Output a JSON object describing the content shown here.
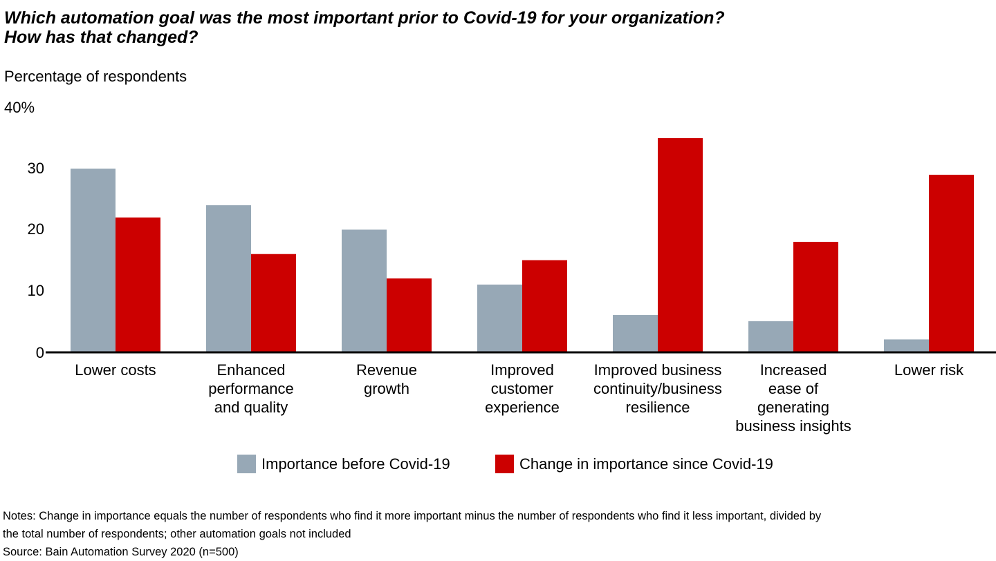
{
  "chart_data": {
    "type": "bar",
    "title": "Which automation goal was the most important prior to Covid-19 for your organization? How has that changed?",
    "title_lines": [
      "Which automation goal was the most important prior to Covid-19 for your organization?",
      "How has that changed?"
    ],
    "ylabel": "Percentage of respondents",
    "xlabel": "",
    "ylim": [
      0,
      40
    ],
    "yticks": [
      "0",
      "10",
      "20",
      "30",
      "40%"
    ],
    "grid": false,
    "legend_position": "bottom",
    "categories": [
      "Lower costs",
      "Enhanced performance and quality",
      "Revenue growth",
      "Improved customer experience",
      "Improved business continuity/business resilience",
      "Increased ease of generating business insights",
      "Lower risk"
    ],
    "category_lines": [
      [
        "Lower costs"
      ],
      [
        "Enhanced",
        "performance",
        "and quality"
      ],
      [
        "Revenue",
        "growth"
      ],
      [
        "Improved",
        "customer",
        "experience"
      ],
      [
        "Improved business",
        "continuity/business",
        "resilience"
      ],
      [
        "Increased",
        "ease of",
        "generating",
        "business insights"
      ],
      [
        "Lower risk"
      ]
    ],
    "series": [
      {
        "name": "Importance before Covid-19",
        "color": "#97A8B6",
        "values": [
          30,
          24,
          20,
          11,
          6,
          5,
          2
        ]
      },
      {
        "name": "Change in importance since Covid-19",
        "color": "#CC0000",
        "values": [
          22,
          16,
          12,
          15,
          35,
          18,
          29
        ]
      }
    ]
  },
  "notes": [
    "Notes: Change in importance equals the number of respondents who find it more important minus the number of respondents who find it less important, divided by",
    "the total number of respondents; other automation goals not included",
    "Source: Bain Automation Survey 2020 (n=500)"
  ]
}
